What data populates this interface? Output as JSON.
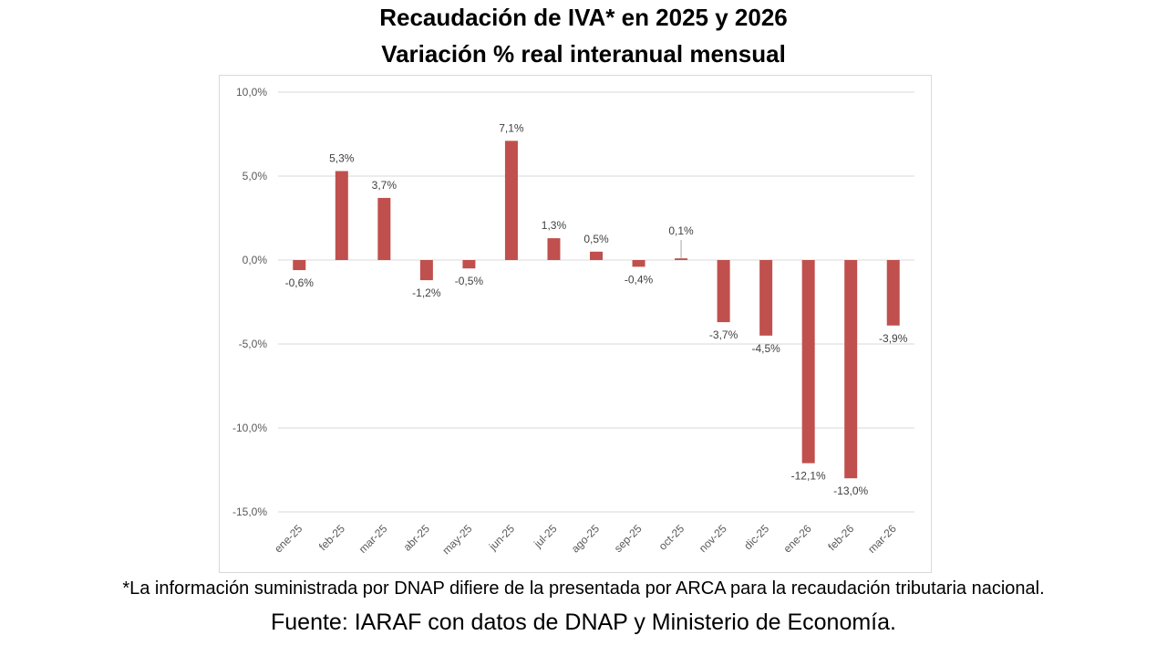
{
  "title": "Recaudación de IVA* en 2025 y 2026",
  "subtitle": "Variación % real interanual mensual",
  "footnote": "*La información suministrada por DNAP difiere de la presentada por ARCA para la recaudación tributaria nacional.",
  "source": "Fuente: IARAF con datos de DNAP y Ministerio de Economía.",
  "chart_data": {
    "type": "bar",
    "title": "Recaudación de IVA* en 2025 y 2026",
    "subtitle": "Variación % real interanual mensual",
    "xlabel": "",
    "ylabel": "",
    "categories": [
      "ene-25",
      "feb-25",
      "mar-25",
      "abr-25",
      "may-25",
      "jun-25",
      "jul-25",
      "ago-25",
      "sep-25",
      "oct-25",
      "nov-25",
      "dic-25",
      "ene-26",
      "feb-26",
      "mar-26"
    ],
    "values": [
      -0.6,
      5.3,
      3.7,
      -1.2,
      -0.5,
      7.1,
      1.3,
      0.5,
      -0.4,
      0.1,
      -3.7,
      -4.5,
      -12.1,
      -13.0,
      -3.9
    ],
    "data_labels": [
      "-0,6%",
      "5,3%",
      "3,7%",
      "-1,2%",
      "-0,5%",
      "7,1%",
      "1,3%",
      "0,5%",
      "-0,4%",
      "0,1%",
      "-3,7%",
      "-4,5%",
      "-12,1%",
      "-13,0%",
      "-3,9%"
    ],
    "ylim": [
      -15,
      10
    ],
    "yticks": [
      10,
      5,
      0,
      -5,
      -10,
      -15
    ],
    "ytick_labels": [
      "10,0%",
      "5,0%",
      "0,0%",
      "-5,0%",
      "-10,0%",
      "-15,0%"
    ],
    "grid": true,
    "legend": "none",
    "bar_color": "#c0504d",
    "units": "%"
  }
}
